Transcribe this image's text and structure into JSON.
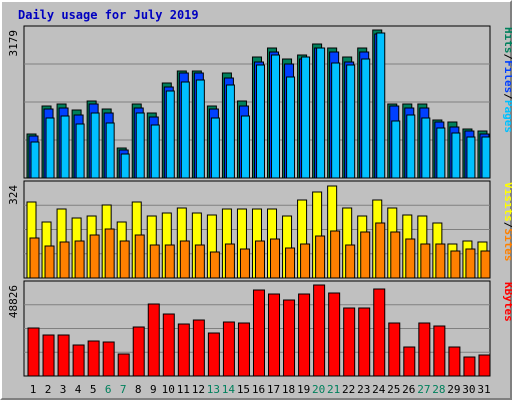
{
  "title": "Daily usage for July 2019",
  "colors": {
    "hits": "#00c0ff",
    "files": "#0040ff",
    "pages": "#00c0ff",
    "visits": "#ffff00",
    "sites": "#ff8000",
    "kbytes": "#ff0000",
    "weekend_label": "#00805c",
    "weekday_label": "#000000",
    "pages_dark": "#00805c"
  },
  "chart_data": [
    {
      "type": "bar",
      "panel": "hits-files-pages",
      "ymax_label": "3179",
      "ylim": [
        0,
        3179
      ],
      "ylabel_parts": [
        "Pages",
        "/",
        "Files",
        "/",
        "Hits"
      ],
      "categories": [
        "1",
        "2",
        "3",
        "4",
        "5",
        "6",
        "7",
        "8",
        "9",
        "10",
        "11",
        "12",
        "13",
        "14",
        "15",
        "16",
        "17",
        "18",
        "19",
        "20",
        "21",
        "22",
        "23",
        "24",
        "25",
        "26",
        "27",
        "28",
        "29",
        "30",
        "31"
      ],
      "weekend_days": [
        "6",
        "7",
        "13",
        "14",
        "20",
        "21",
        "27",
        "28"
      ],
      "series": [
        {
          "name": "Hits",
          "values": [
            950,
            1550,
            1600,
            1450,
            1650,
            1480,
            650,
            1600,
            1400,
            2050,
            2300,
            2300,
            1550,
            2250,
            1650,
            2600,
            2800,
            2550,
            2650,
            2880,
            2800,
            2600,
            2800,
            3179,
            1600,
            1600,
            1600,
            1250,
            1200,
            1050,
            1000
          ]
        },
        {
          "name": "Files",
          "values": [
            900,
            1480,
            1500,
            1350,
            1580,
            1400,
            600,
            1500,
            1300,
            1950,
            2250,
            2250,
            1480,
            2150,
            1550,
            2500,
            2700,
            2450,
            2550,
            2800,
            2700,
            2500,
            2700,
            3100,
            1550,
            1500,
            1500,
            1200,
            1100,
            1000,
            950
          ]
        },
        {
          "name": "Pages",
          "values": [
            780,
            1290,
            1330,
            1150,
            1400,
            1190,
            520,
            1390,
            1130,
            1860,
            2070,
            2100,
            1290,
            2000,
            1330,
            2430,
            2640,
            2180,
            2590,
            2790,
            2460,
            2430,
            2560,
            3120,
            1230,
            1360,
            1280,
            1080,
            970,
            880,
            880
          ]
        }
      ]
    },
    {
      "type": "bar",
      "panel": "visits-sites",
      "ymax_label": "324",
      "ylim": [
        0,
        324
      ],
      "ylabel_parts": [
        "Sites",
        "/",
        "Visits"
      ],
      "categories": [
        "1",
        "2",
        "3",
        "4",
        "5",
        "6",
        "7",
        "8",
        "9",
        "10",
        "11",
        "12",
        "13",
        "14",
        "15",
        "16",
        "17",
        "18",
        "19",
        "20",
        "21",
        "22",
        "23",
        "24",
        "25",
        "26",
        "27",
        "28",
        "29",
        "30",
        "31"
      ],
      "series": [
        {
          "name": "Visits",
          "values": [
            265,
            195,
            240,
            210,
            215,
            255,
            195,
            265,
            215,
            225,
            245,
            225,
            220,
            240,
            240,
            240,
            240,
            215,
            270,
            300,
            320,
            245,
            215,
            270,
            245,
            220,
            215,
            190,
            120,
            130,
            125
          ]
        },
        {
          "name": "Sites",
          "values": [
            140,
            110,
            125,
            130,
            150,
            170,
            130,
            150,
            115,
            115,
            130,
            115,
            90,
            120,
            100,
            130,
            135,
            105,
            120,
            145,
            165,
            115,
            160,
            190,
            160,
            135,
            120,
            120,
            95,
            100,
            95
          ]
        }
      ]
    },
    {
      "type": "bar",
      "panel": "kbytes",
      "ymax_label": "48826",
      "ylim": [
        0,
        48826
      ],
      "ylabel_parts": [
        "KBytes"
      ],
      "categories": [
        "1",
        "2",
        "3",
        "4",
        "5",
        "6",
        "7",
        "8",
        "9",
        "10",
        "11",
        "12",
        "13",
        "14",
        "15",
        "16",
        "17",
        "18",
        "19",
        "20",
        "21",
        "22",
        "23",
        "24",
        "25",
        "26",
        "27",
        "28",
        "29",
        "30",
        "31"
      ],
      "series": [
        {
          "name": "KBytes",
          "values": [
            25500,
            22000,
            22000,
            16500,
            19000,
            18500,
            12000,
            26500,
            38500,
            33500,
            28000,
            30000,
            23000,
            29000,
            28500,
            46000,
            44000,
            41000,
            44000,
            49000,
            44500,
            36500,
            36500,
            46500,
            28500,
            15500,
            28500,
            27000,
            15500,
            10000,
            11500
          ]
        }
      ]
    }
  ]
}
